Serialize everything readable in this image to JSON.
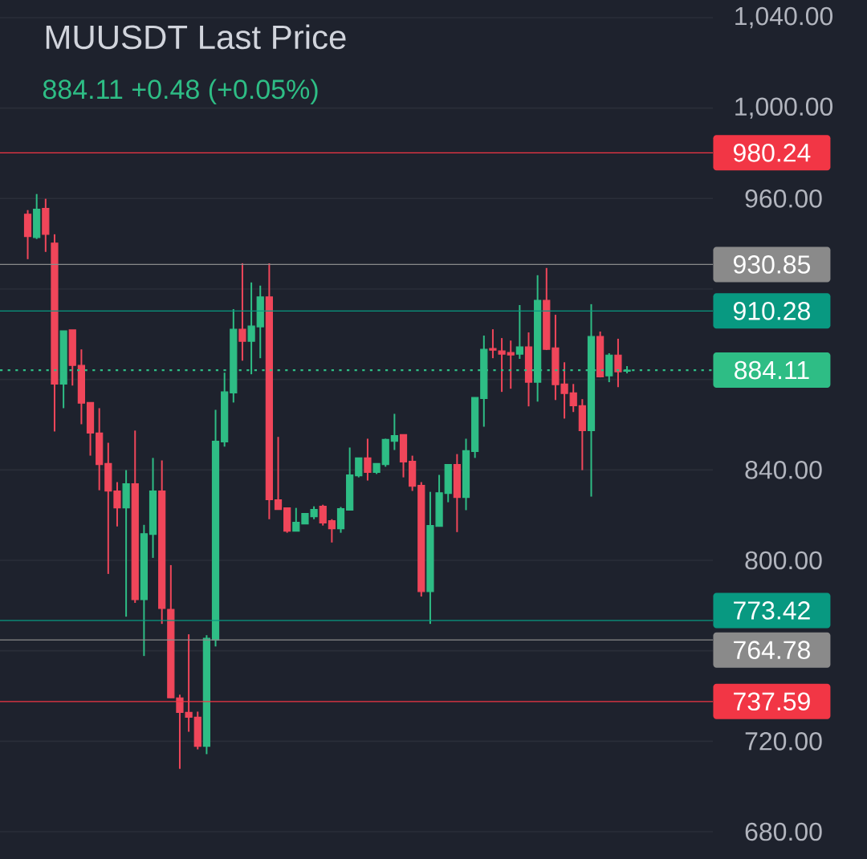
{
  "chart_data": {
    "type": "candlestick",
    "title": "MUUSDT Last Price",
    "subtitle": "884.11 +0.48 (+0.05%)",
    "categories": [
      null,
      null,
      null,
      null,
      null,
      null,
      null,
      null,
      null,
      null,
      null,
      null,
      null,
      null,
      null,
      null,
      null,
      null,
      null,
      null,
      null,
      null,
      null,
      null,
      null,
      null,
      null,
      null,
      null,
      null,
      null,
      null,
      null,
      null,
      null,
      null,
      null,
      null,
      null,
      null,
      null,
      null,
      null,
      null,
      null,
      null,
      null,
      null,
      null,
      null,
      null,
      null,
      null,
      null,
      null,
      null,
      null,
      null,
      null,
      null,
      null,
      null,
      null,
      null,
      null,
      null,
      null,
      null
    ],
    "ohlc": [
      [
        953.1,
        954.9,
        933.2,
        943.2
      ],
      [
        942.8,
        962.0,
        942.1,
        955.3
      ],
      [
        955.6,
        959.9,
        936.4,
        944.2
      ],
      [
        940.3,
        944.2,
        857.0,
        878.0
      ],
      [
        878.0,
        901.5,
        867.3,
        901.5
      ],
      [
        901.9,
        901.9,
        877.3,
        886.2
      ],
      [
        886.2,
        893.3,
        860.2,
        869.5
      ],
      [
        869.8,
        869.8,
        846.3,
        856.3
      ],
      [
        856.3,
        867.3,
        831.0,
        842.4
      ],
      [
        842.8,
        852.0,
        794.0,
        830.7
      ],
      [
        830.7,
        834.6,
        815.0,
        823.2
      ],
      [
        823.2,
        839.9,
        775.1,
        833.9
      ],
      [
        833.9,
        857.4,
        781.2,
        782.6
      ],
      [
        782.6,
        815.7,
        757.7,
        811.8
      ],
      [
        811.5,
        845.3,
        801.1,
        830.7
      ],
      [
        830.7,
        844.2,
        771.9,
        778.7
      ],
      [
        778.3,
        797.9,
        739.2,
        739.2
      ],
      [
        739.2,
        740.6,
        707.8,
        732.8
      ],
      [
        732.8,
        767.3,
        724.2,
        730.6
      ],
      [
        730.6,
        733.1,
        716.4,
        717.8
      ],
      [
        717.8,
        766.9,
        714.3,
        765.5
      ],
      [
        764.8,
        866.6,
        761.9,
        852.7
      ],
      [
        852.4,
        883.0,
        850.3,
        874.5
      ],
      [
        874.1,
        911.1,
        869.8,
        902.2
      ],
      [
        902.2,
        931.4,
        888.3,
        896.9
      ],
      [
        896.9,
        922.9,
        882.3,
        903.6
      ],
      [
        903.3,
        921.5,
        889.4,
        916.5
      ],
      [
        916.5,
        931.4,
        818.2,
        826.8
      ],
      [
        826.8,
        854.6,
        822.5,
        822.5
      ],
      [
        823.2,
        823.2,
        812.2,
        812.9
      ],
      [
        812.9,
        823.2,
        812.9,
        816.8
      ],
      [
        816.1,
        820.7,
        816.1,
        820.7
      ],
      [
        819.3,
        823.9,
        818.2,
        822.5
      ],
      [
        823.9,
        824.6,
        815.4,
        816.5
      ],
      [
        817.5,
        818.2,
        807.9,
        814.0
      ],
      [
        814.0,
        823.6,
        812.2,
        822.9
      ],
      [
        822.2,
        849.9,
        822.2,
        837.8
      ],
      [
        837.4,
        845.3,
        836.7,
        845.3
      ],
      [
        845.3,
        853.8,
        835.3,
        838.9
      ],
      [
        838.9,
        842.8,
        838.2,
        842.8
      ],
      [
        842.4,
        853.8,
        841.4,
        853.5
      ],
      [
        852.7,
        864.8,
        848.8,
        855.2
      ],
      [
        855.6,
        855.6,
        836.7,
        843.5
      ],
      [
        843.8,
        846.3,
        830.7,
        832.8
      ],
      [
        833.2,
        834.6,
        784.0,
        786.2
      ],
      [
        786.2,
        830.3,
        771.9,
        815.4
      ],
      [
        815.0,
        837.8,
        815.0,
        829.9
      ],
      [
        829.6,
        842.4,
        825.7,
        842.4
      ],
      [
        842.4,
        847.0,
        812.5,
        827.8
      ],
      [
        827.8,
        853.8,
        822.2,
        848.5
      ],
      [
        848.1,
        872.0,
        845.3,
        872.0
      ],
      [
        871.6,
        899.4,
        859.1,
        893.3
      ],
      [
        893.7,
        902.2,
        889.4,
        893.0
      ],
      [
        892.6,
        898.3,
        874.5,
        891.2
      ],
      [
        891.9,
        897.2,
        875.9,
        890.8
      ],
      [
        891.2,
        912.9,
        889.1,
        894.4
      ],
      [
        894.4,
        900.8,
        868.1,
        878.8
      ],
      [
        878.8,
        926.1,
        870.2,
        915.0
      ],
      [
        915.0,
        929.3,
        893.0,
        893.3
      ],
      [
        894.0,
        908.6,
        870.9,
        877.7
      ],
      [
        878.0,
        887.6,
        862.7,
        873.8
      ],
      [
        874.1,
        878.0,
        865.6,
        868.4
      ],
      [
        868.4,
        871.3,
        839.9,
        857.4
      ],
      [
        857.4,
        913.3,
        828.2,
        899.0
      ],
      [
        899.0,
        901.2,
        880.9,
        881.2
      ],
      [
        881.6,
        891.6,
        878.8,
        890.8
      ],
      [
        890.8,
        898.0,
        876.6,
        883.4
      ],
      [
        883.63,
        885.9,
        882.7,
        884.11
      ]
    ],
    "colors": [
      "#f0465a",
      "#2ebd85",
      "#f0465a",
      "#f0465a",
      "#2ebd85",
      "#f0465a",
      "#f0465a",
      "#f0465a",
      "#f0465a",
      "#f0465a",
      "#f0465a",
      "#2ebd85",
      "#f0465a",
      "#2ebd85",
      "#2ebd85",
      "#f0465a",
      "#f0465a",
      "#f0465a",
      "#f0465a",
      "#f0465a",
      "#2ebd85",
      "#2ebd85",
      "#2ebd85",
      "#2ebd85",
      "#f0465a",
      "#2ebd85",
      "#2ebd85",
      "#f0465a",
      "#f0465a",
      "#f0465a",
      "#2ebd85",
      "#2ebd85",
      "#2ebd85",
      "#f0465a",
      "#f0465a",
      "#2ebd85",
      "#2ebd85",
      "#2ebd85",
      "#f0465a",
      "#2ebd85",
      "#2ebd85",
      "#2ebd85",
      "#f0465a",
      "#f0465a",
      "#f0465a",
      "#2ebd85",
      "#2ebd85",
      "#2ebd85",
      "#f0465a",
      "#2ebd85",
      "#2ebd85",
      "#2ebd85",
      "#f0465a",
      "#f0465a",
      "#f0465a",
      "#2ebd85",
      "#f0465a",
      "#2ebd85",
      "#f0465a",
      "#f0465a",
      "#f0465a",
      "#f0465a",
      "#f0465a",
      "#2ebd85",
      "#f0465a",
      "#2ebd85",
      "#f0465a",
      "#2ebd85"
    ],
    "ylim": [
      680,
      1040
    ],
    "yticks": [
      {
        "value": 680,
        "label": "680.00"
      },
      {
        "value": 720,
        "label": "720.00"
      },
      {
        "value": 760,
        "label": null
      },
      {
        "value": 800,
        "label": "800.00"
      },
      {
        "value": 840,
        "label": "840.00"
      },
      {
        "value": 880,
        "label": null
      },
      {
        "value": 920,
        "label": null
      },
      {
        "value": 960,
        "label": "960.00"
      },
      {
        "value": 1000,
        "label": "1,000.00"
      },
      {
        "value": 1040,
        "label": "1,040.00"
      }
    ],
    "grid": "y",
    "ref_lines": [
      {
        "axis": "y",
        "value": 980.24,
        "label": "980.24",
        "color": "#f23645",
        "line_style": "solid"
      },
      {
        "axis": "y",
        "value": 930.85,
        "label": "930.85",
        "color": "#8a8a8a",
        "line_style": "solid"
      },
      {
        "axis": "y",
        "value": 910.28,
        "label": "910.28",
        "color": "#089981",
        "line_style": "solid"
      },
      {
        "axis": "y",
        "value": 884.11,
        "label": "884.11",
        "color": "#2ebd85",
        "line_style": "dotted"
      },
      {
        "axis": "y",
        "value": 773.42,
        "label": "773.42",
        "color": "#089981",
        "line_style": "solid"
      },
      {
        "axis": "y",
        "value": 764.78,
        "label": "764.78",
        "color": "#8a8a8a",
        "line_style": "solid"
      },
      {
        "axis": "y",
        "value": 737.59,
        "label": "737.59",
        "color": "#f23645",
        "line_style": "solid"
      }
    ]
  }
}
